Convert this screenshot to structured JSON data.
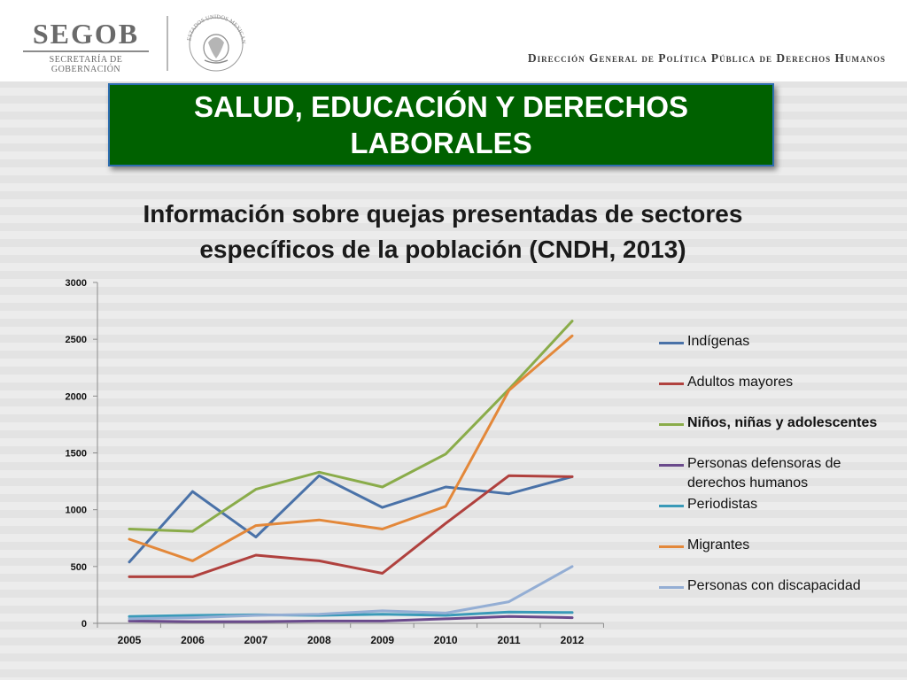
{
  "header": {
    "logo_text": "SEGOB",
    "logo_sub": "SECRETARÍA DE GOBERNACIÓN",
    "seal_text": "ESTADOS UNIDOS MEXICANOS",
    "right_text": "Dirección General de Política Pública de Derechos Humanos"
  },
  "slide": {
    "title_line1": "SALUD, EDUCACIÓN Y DERECHOS",
    "title_line2": "LABORALES",
    "subtitle_line1": "Información sobre quejas presentadas de sectores",
    "subtitle_line2": "específicos de la población (CNDH, 2013)",
    "title_bg": "#006100"
  },
  "chart_data": {
    "type": "line",
    "categories": [
      "2005",
      "2006",
      "2007",
      "2008",
      "2009",
      "2010",
      "2011",
      "2012"
    ],
    "ylim": [
      0,
      3000
    ],
    "yticks": [
      0,
      500,
      1000,
      1500,
      2000,
      2500,
      3000
    ],
    "grid": false,
    "legend_position": "right",
    "series": [
      {
        "name": "Indígenas",
        "color": "#4a72a8",
        "values": [
          540,
          1160,
          760,
          1300,
          1020,
          1200,
          1140,
          1290
        ]
      },
      {
        "name": "Adultos mayores",
        "color": "#b0413e",
        "values": [
          410,
          410,
          600,
          550,
          440,
          880,
          1300,
          1290
        ]
      },
      {
        "name": "Niños, niñas y adolescentes",
        "color": "#8aac4a",
        "values": [
          830,
          810,
          1180,
          1330,
          1200,
          1490,
          2060,
          2660
        ]
      },
      {
        "name": "Personas defensoras de derechos humanos",
        "color": "#6a4a8c",
        "values": [
          20,
          15,
          15,
          20,
          20,
          40,
          60,
          50
        ]
      },
      {
        "name": "Periodistas",
        "color": "#3a9ab8",
        "values": [
          60,
          70,
          75,
          70,
          80,
          70,
          100,
          95
        ]
      },
      {
        "name": "Migrantes",
        "color": "#e3883a",
        "values": [
          740,
          550,
          860,
          910,
          830,
          1030,
          2050,
          2530
        ]
      },
      {
        "name": "Personas con discapacidad",
        "color": "#94aed4",
        "values": [
          40,
          50,
          70,
          80,
          110,
          90,
          190,
          500
        ]
      }
    ]
  }
}
